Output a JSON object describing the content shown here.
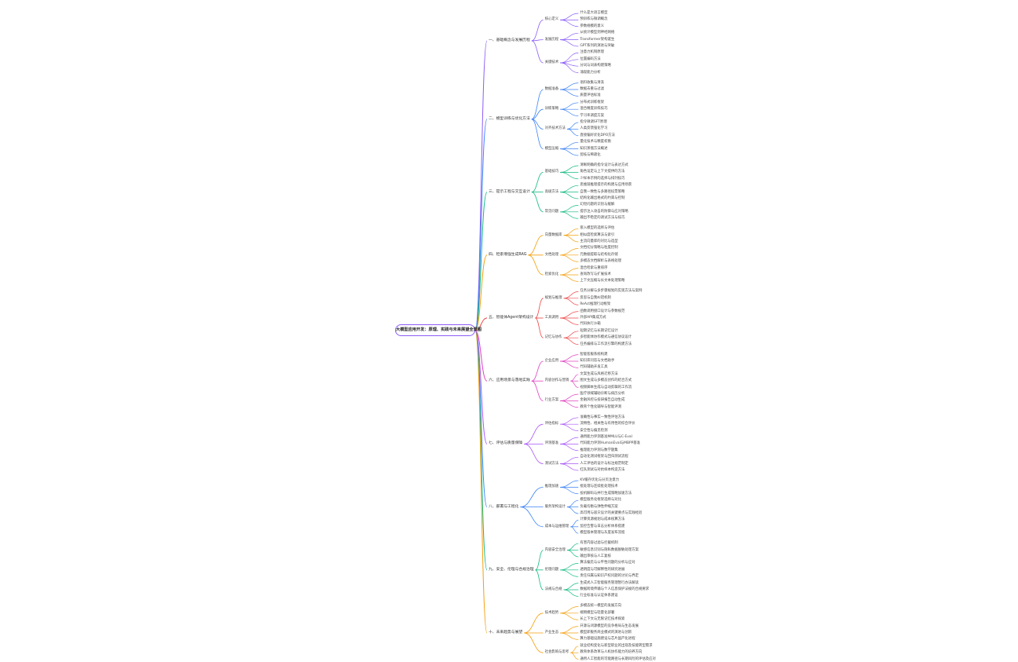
{
  "root": "大模型应用开发：原理、实践与未来展望全景图",
  "colors": [
    "#8b5cf6",
    "#3b82f6",
    "#10b981",
    "#f59e0b",
    "#ef4444",
    "#e040c0",
    "#a855f7",
    "#3b82f6",
    "#10b981",
    "#f59e0b"
  ],
  "branches": [
    {
      "label": "一、基础概念与发展历程",
      "children": [
        {
          "label": "核心定义",
          "children": [
            "什么是大语言模型",
            "预训练与微调概念",
            "参数规模的意义"
          ]
        },
        {
          "label": "发展历程",
          "children": [
            "从统计模型到神经网络",
            "Transformer架构诞生",
            "GPT系列的演进与突破"
          ]
        },
        {
          "label": "关键技术",
          "children": [
            "注意力机制原理",
            "位置编码方法",
            "分词与词表构建策略",
            "涌现能力分析"
          ]
        }
      ]
    },
    {
      "label": "二、模型训练与优化方法",
      "children": [
        {
          "label": "数据准备",
          "children": [
            "语料收集与清洗",
            "数据去重与过滤",
            "质量评估标准"
          ]
        },
        {
          "label": "训练策略",
          "children": [
            "分布式训练框架",
            "混合精度训练技巧",
            "学习率调度方案"
          ]
        },
        {
          "label": "对齐技术方法",
          "children": [
            "指令微调SFT原理",
            "人类反馈强化学习",
            "直接偏好优化DPO方法"
          ]
        },
        {
          "label": "模型压缩",
          "children": [
            "量化技术与精度权衡",
            "知识蒸馏方法概述",
            "剪枝与稀疏化"
          ]
        }
      ]
    },
    {
      "label": "三、提示工程与交互设计",
      "children": [
        {
          "label": "基础技巧",
          "children": [
            "清晰明确的指令设计与表达方式",
            "角色设定与上下文提供的方法",
            "少样本示例的选择与排列技巧"
          ]
        },
        {
          "label": "高级方法",
          "children": [
            "思维链推理提示的构建与应用场景",
            "自我一致性与多路径投票策略",
            "结构化输出格式的约束与控制"
          ]
        },
        {
          "label": "常见问题",
          "children": [
            "幻觉问题的识别与缓解",
            "提示注入攻击的防御与应对策略",
            "输出不稳定的调试方法与技巧"
          ]
        }
      ]
    },
    {
      "label": "四、检索增强生成RAG",
      "children": [
        {
          "label": "向量数据库",
          "children": [
            "嵌入模型的选择与评估",
            "相似度检索算法与索引",
            "主流向量库的对比与选型"
          ]
        },
        {
          "label": "文档处理",
          "children": [
            "文档切分策略与粒度控制",
            "元数据提取与结构化存储",
            "多模态文档解析与表格处理"
          ]
        },
        {
          "label": "检索优化",
          "children": [
            "混合检索与重排序",
            "查询改写与扩展技术",
            "上下文压缩与长文本处理策略"
          ]
        }
      ]
    },
    {
      "label": "五、智能体Agent架构设计",
      "children": [
        {
          "label": "规划与推理",
          "children": [
            "任务分解与多步骤规划的实现方法与案例",
            "反思与自我纠错机制",
            "ReAct推理行动框架"
          ]
        },
        {
          "label": "工具调用",
          "children": [
            "函数调用接口设计与参数规范",
            "外部API集成方式",
            "代码执行沙箱"
          ]
        },
        {
          "label": "记忆与协作",
          "children": [
            "短期记忆与长期记忆设计",
            "多智能体协作模式与通信协议设计",
            "任务编排与工作流引擎的构建方法"
          ]
        }
      ]
    },
    {
      "label": "六、应用场景与落地实践",
      "children": [
        {
          "label": "企业应用",
          "children": [
            "智能客服系统构建",
            "知识库问答与文档助手",
            "代码辅助开发工具"
          ]
        },
        {
          "label": "内容创作与营销",
          "children": [
            "文案生成与风格迁移方法",
            "图文生成与多模态创作的结合方式",
            "视频脚本生成与自动剪辑的工作流"
          ]
        },
        {
          "label": "行业方案",
          "children": [
            "医疗领域辅助诊断与病历分析",
            "金融风控与投研报告自动生成",
            "教育个性化辅导与智能评测"
          ]
        }
      ]
    },
    {
      "label": "七、评估与质量保障",
      "children": [
        {
          "label": "评估指标",
          "children": [
            "准确性与事实一致性评估方法",
            "流畅性、相关性与有用性的综合评价",
            "安全性与偏见检测"
          ]
        },
        {
          "label": "评测基准",
          "children": [
            "通用能力评测基准MMLU与C-Eval",
            "代码能力评测HumanEval与MBPP基准",
            "推理能力评测与数学题集"
          ]
        },
        {
          "label": "测试方法",
          "children": [
            "自动化测试框架与回归测试流程",
            "人工评估的设计与标注规范制定",
            "红队测试与对抗样本构造方法"
          ]
        }
      ]
    },
    {
      "label": "八、部署与工程化",
      "children": [
        {
          "label": "推理加速",
          "children": [
            "KV缓存优化与分页注意力",
            "批处理与连续批处理技术",
            "投机解码与并行生成策略加速方法"
          ]
        },
        {
          "label": "服务架构设计",
          "children": [
            "模型服务化框架选择与对比",
            "负载均衡与弹性伸缩方案",
            "高可用与容灾设计的关键要点与实践经验"
          ]
        },
        {
          "label": "成本与运维管理",
          "children": [
            "计算资源规划与成本核算方法",
            "监控告警与日志分析体系搭建",
            "模型版本管理与灰度发布流程"
          ]
        }
      ]
    },
    {
      "label": "九、安全、伦理与合规治理",
      "children": [
        {
          "label": "内容安全治理",
          "children": [
            "有害内容过滤与拦截机制",
            "敏感信息识别与隐私数据脱敏处理方案",
            "输出审核与人工复核"
          ]
        },
        {
          "label": "伦理问题",
          "children": [
            "算法偏见与公平性问题的分析与应对",
            "透明度与可解释性的研究进展",
            "责任归属与知识产权问题的讨论与界定"
          ]
        },
        {
          "label": "法规与合规",
          "children": [
            "生成式人工智能服务管理暂行办法解读",
            "数据跨境传输与个人信息保护法规的合规要求",
            "行业标准与认证体系建设"
          ]
        }
      ]
    },
    {
      "label": "十、未来趋势与展望",
      "children": [
        {
          "label": "技术趋势",
          "children": [
            "多模态统一模型的发展方向",
            "端侧模型与轻量化部署",
            "长上下文与无限记忆技术探索"
          ]
        },
        {
          "label": "产业生态",
          "children": [
            "开源与闭源模型的竞争格局与生态发展",
            "模型即服务商业模式的演进与创新",
            "算力基础设施建设与芯片国产化进程"
          ]
        },
        {
          "label": "社会影响与思考",
          "children": [
            "就业结构变化与新型职业的出现及技能转型需求",
            "教育体系改革与人机协作能力的培养方向",
            "通用人工智能的可能路径与长期风险的评估及应对"
          ]
        }
      ]
    }
  ]
}
